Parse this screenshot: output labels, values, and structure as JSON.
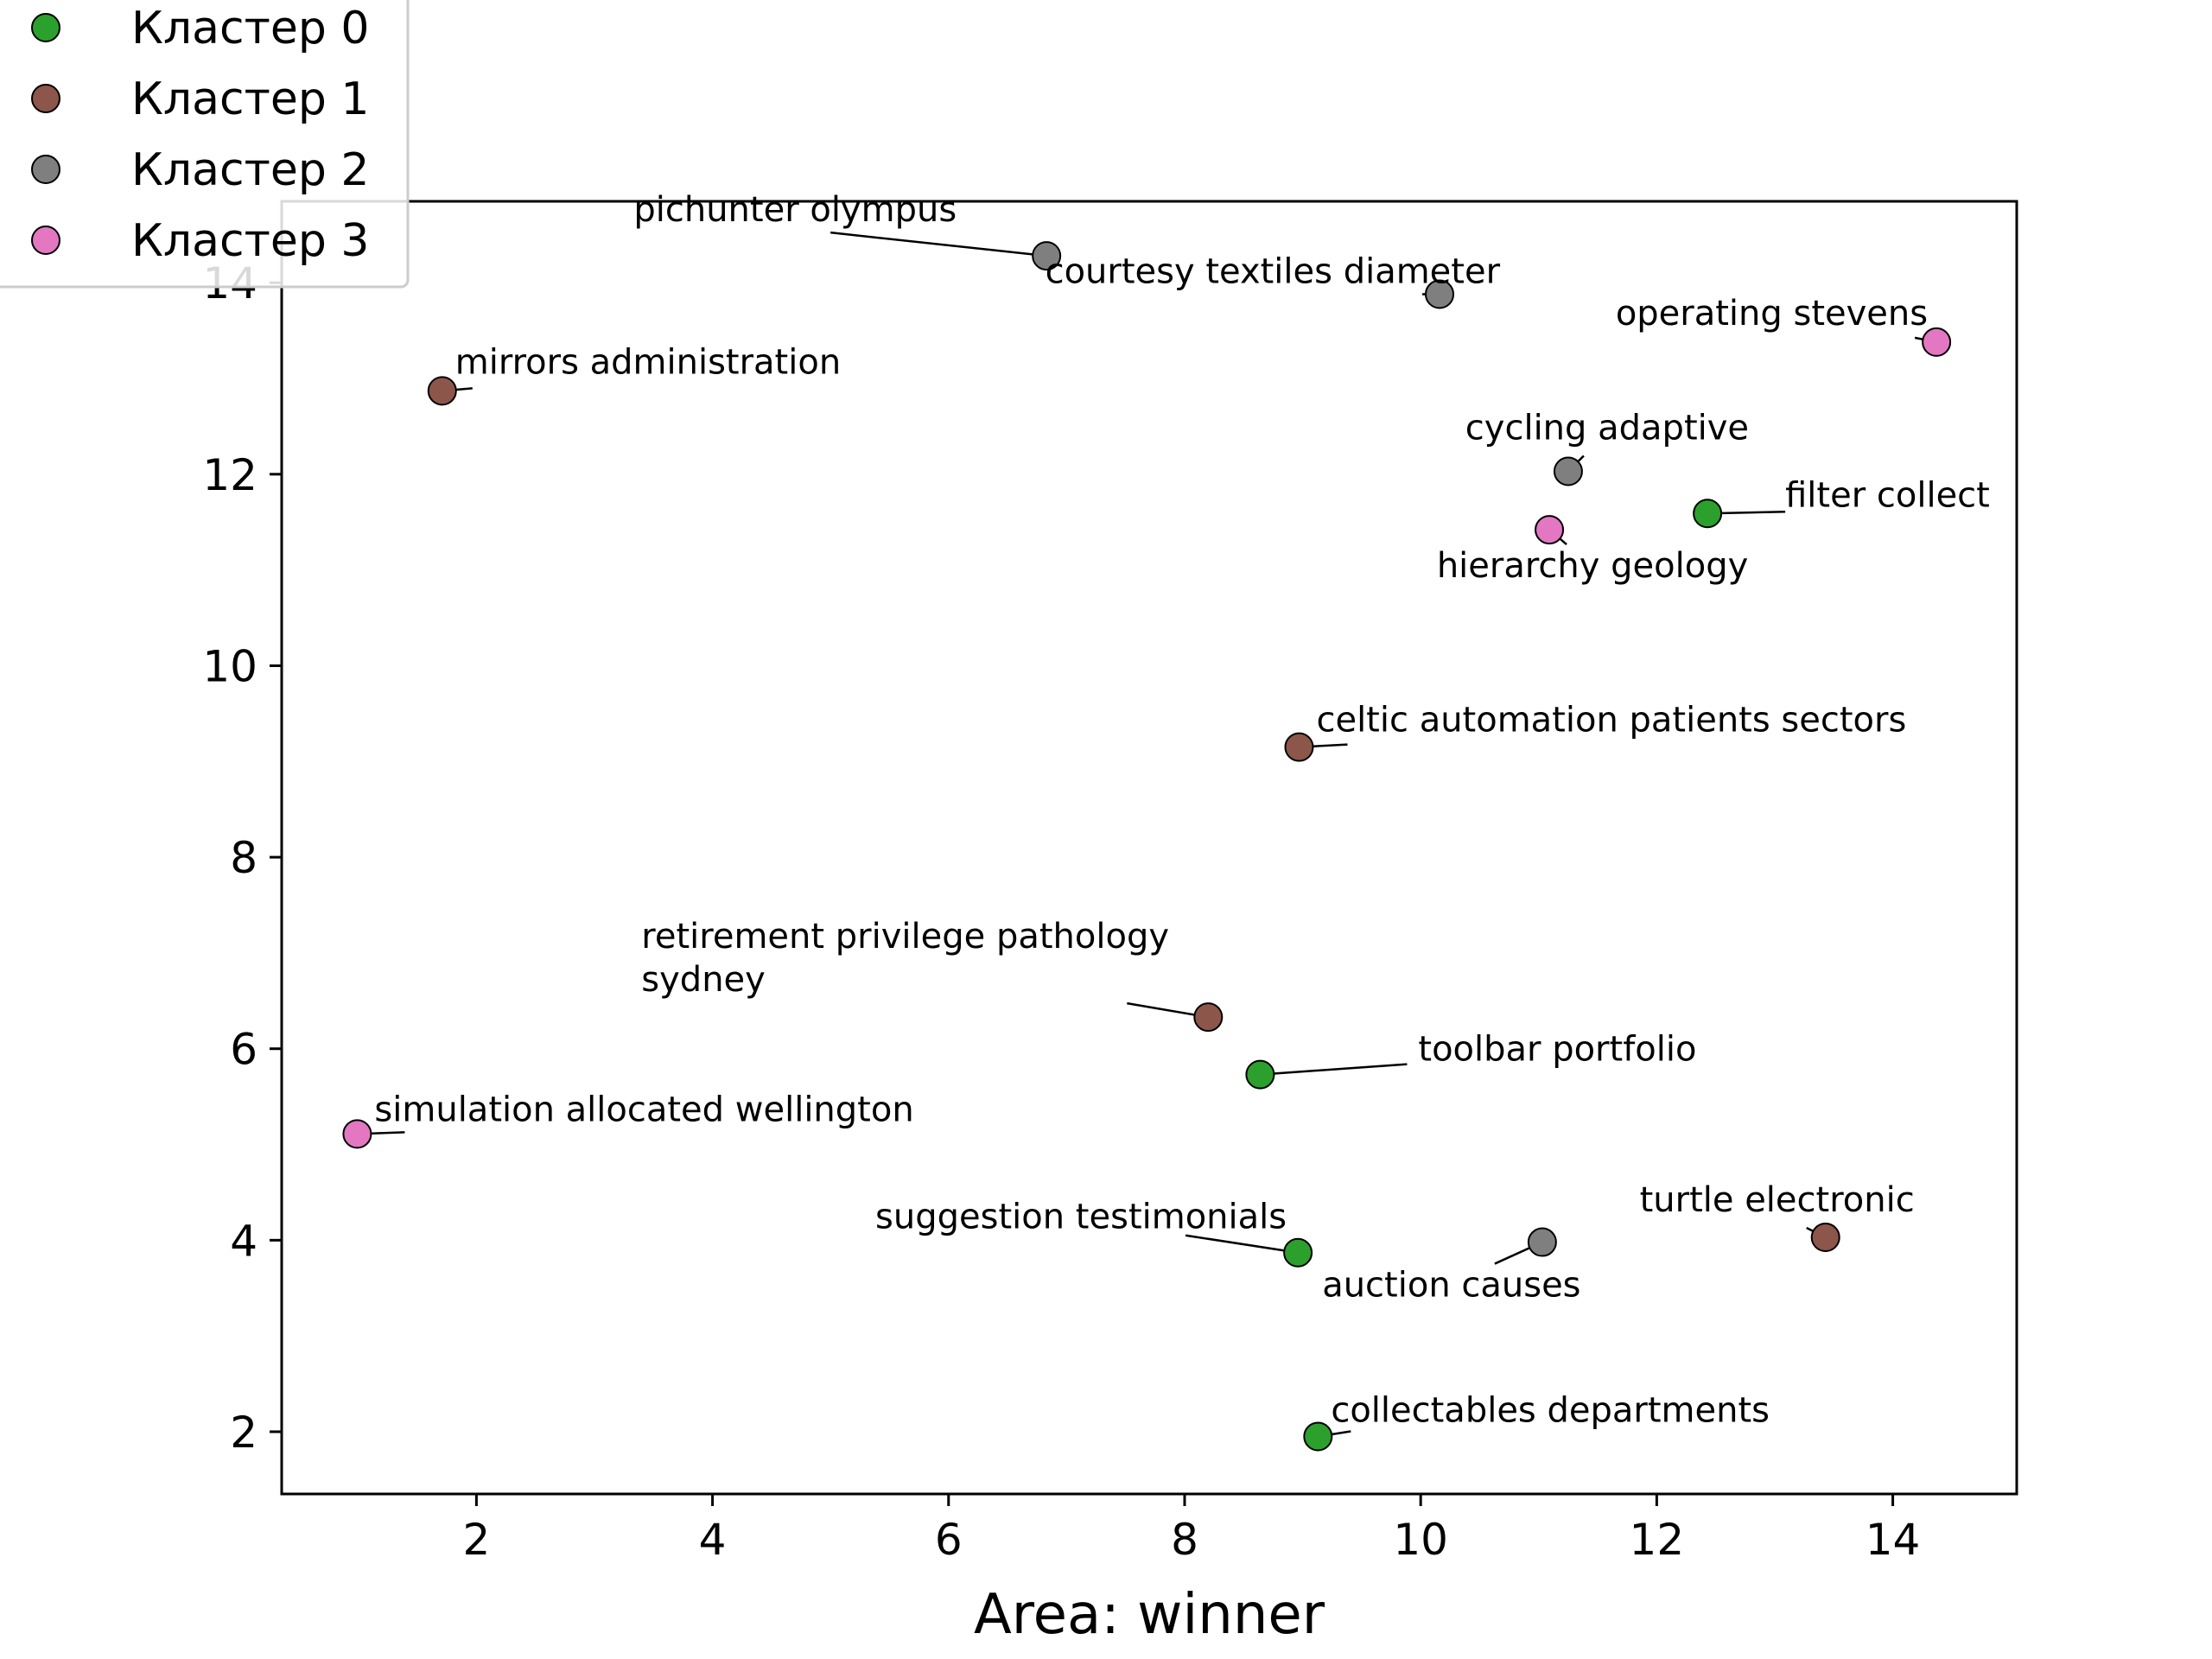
{
  "chart_data": {
    "type": "scatter",
    "title": "",
    "xlabel": "Area: winner",
    "ylabel": "",
    "xlim": [
      0.35,
      15.05
    ],
    "ylim": [
      1.35,
      14.85
    ],
    "x_ticks": [
      2,
      4,
      6,
      8,
      10,
      12,
      14
    ],
    "y_ticks": [
      2,
      4,
      6,
      8,
      10,
      12,
      14
    ],
    "grid": false,
    "legend": {
      "placement": "top-left",
      "entries": [
        {
          "label": "Кластер 0",
          "color": "#2ca02c"
        },
        {
          "label": "Кластер 1",
          "color": "#8c564b"
        },
        {
          "label": "Кластер 2",
          "color": "#7f7f7f"
        },
        {
          "label": "Кластер 3",
          "color": "#e377c2"
        }
      ]
    },
    "series": [
      {
        "name": "Кластер 0",
        "color": "#2ca02c",
        "points": [
          {
            "x": 12.43,
            "y": 11.59,
            "label": "filter collect"
          },
          {
            "x": 8.64,
            "y": 5.73,
            "label": "toolbar portfolio"
          },
          {
            "x": 8.96,
            "y": 3.87,
            "label": "suggestion testimonials"
          },
          {
            "x": 9.13,
            "y": 1.95,
            "label": "collectables departments"
          }
        ]
      },
      {
        "name": "Кластер 1",
        "color": "#8c564b",
        "points": [
          {
            "x": 1.71,
            "y": 12.87,
            "label": "mirrors administration"
          },
          {
            "x": 8.97,
            "y": 9.15,
            "label": "celtic automation patients sectors"
          },
          {
            "x": 8.2,
            "y": 6.33,
            "label": "retirement privilege pathology sydney"
          },
          {
            "x": 13.43,
            "y": 4.03,
            "label": "turtle electronic"
          }
        ]
      },
      {
        "name": "Кластер 2",
        "color": "#7f7f7f",
        "points": [
          {
            "x": 6.83,
            "y": 14.28,
            "label": "pichunter olympus"
          },
          {
            "x": 10.16,
            "y": 13.88,
            "label": "courtesy textiles diameter"
          },
          {
            "x": 11.25,
            "y": 12.03,
            "label": "cycling adaptive"
          },
          {
            "x": 11.03,
            "y": 3.98,
            "label": "auction causes"
          }
        ]
      },
      {
        "name": "Кластер 3",
        "color": "#e377c2",
        "points": [
          {
            "x": 14.37,
            "y": 13.38,
            "label": "operating stevens"
          },
          {
            "x": 11.09,
            "y": 11.42,
            "label": "hierarchy geology"
          },
          {
            "x": 0.99,
            "y": 5.11,
            "label": "simulation allocated wellington"
          }
        ]
      }
    ]
  }
}
